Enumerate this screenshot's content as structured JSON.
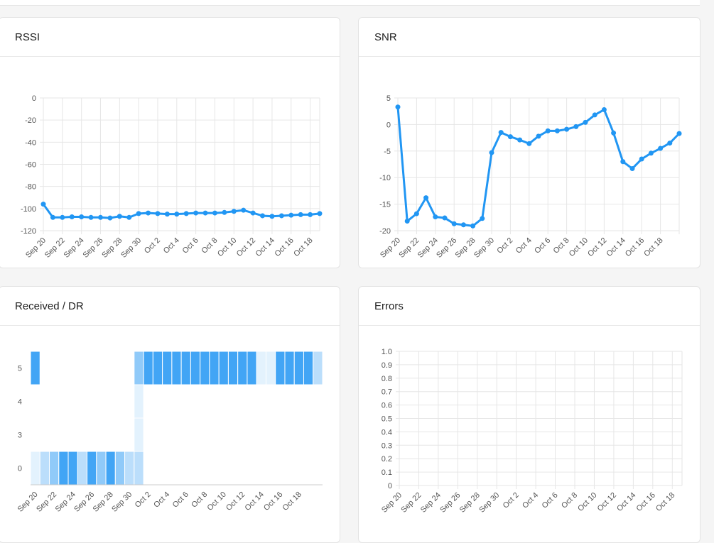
{
  "colors": {
    "line": "#2196f3",
    "grid": "#e6e6e6",
    "axis": "#cccccc"
  },
  "cards": {
    "rssi": {
      "title": "RSSI"
    },
    "snr": {
      "title": "SNR"
    },
    "received": {
      "title": "Received / DR"
    },
    "errors": {
      "title": "Errors"
    }
  },
  "chart_data": [
    {
      "id": "rssi",
      "type": "line",
      "title": "RSSI",
      "x": [
        "Sep 20",
        "Sep 21",
        "Sep 22",
        "Sep 23",
        "Sep 24",
        "Sep 25",
        "Sep 26",
        "Sep 27",
        "Sep 28",
        "Sep 29",
        "Sep 30",
        "Oct 1",
        "Oct 2",
        "Oct 3",
        "Oct 4",
        "Oct 5",
        "Oct 6",
        "Oct 7",
        "Oct 8",
        "Oct 9",
        "Oct 10",
        "Oct 11",
        "Oct 12",
        "Oct 13",
        "Oct 14",
        "Oct 15",
        "Oct 16",
        "Oct 17",
        "Oct 18",
        "Oct 19"
      ],
      "x_tick_labels": [
        "Sep 20",
        "Sep 22",
        "Sep 24",
        "Sep 26",
        "Sep 28",
        "Sep 30",
        "Oct 2",
        "Oct 4",
        "Oct 6",
        "Oct 8",
        "Oct 10",
        "Oct 12",
        "Oct 14",
        "Oct 16",
        "Oct 18"
      ],
      "values": [
        -96,
        -108,
        -108,
        -107.5,
        -107.5,
        -108,
        -108,
        -108.5,
        -107,
        -108,
        -104.5,
        -104,
        -104.5,
        -105,
        -105,
        -104.5,
        -104,
        -104,
        -104,
        -103.5,
        -102.5,
        -101.5,
        -104,
        -106.5,
        -107,
        -106.5,
        -106,
        -105.5,
        -105.5,
        -104.5
      ],
      "ylim": [
        -120,
        0
      ],
      "yticks": [
        0,
        -20,
        -40,
        -60,
        -80,
        -100,
        -120
      ]
    },
    {
      "id": "snr",
      "type": "line",
      "title": "SNR",
      "x": [
        "Sep 20",
        "Sep 21",
        "Sep 22",
        "Sep 23",
        "Sep 24",
        "Sep 25",
        "Sep 26",
        "Sep 27",
        "Sep 28",
        "Sep 29",
        "Sep 30",
        "Oct 1",
        "Oct 2",
        "Oct 3",
        "Oct 4",
        "Oct 5",
        "Oct 6",
        "Oct 7",
        "Oct 8",
        "Oct 9",
        "Oct 10",
        "Oct 11",
        "Oct 12",
        "Oct 13",
        "Oct 14",
        "Oct 15",
        "Oct 16",
        "Oct 17",
        "Oct 18",
        "Oct 19"
      ],
      "x_tick_labels": [
        "Sep 20",
        "Sep 22",
        "Sep 24",
        "Sep 26",
        "Sep 28",
        "Sep 30",
        "Oct 2",
        "Oct 4",
        "Oct 6",
        "Oct 8",
        "Oct 10",
        "Oct 12",
        "Oct 14",
        "Oct 16",
        "Oct 18"
      ],
      "values": [
        3.3,
        -18.2,
        -16.8,
        -13.8,
        -17.4,
        -17.6,
        -18.7,
        -18.9,
        -19.1,
        -17.7,
        -5.3,
        -1.5,
        -2.3,
        -2.9,
        -3.6,
        -2.2,
        -1.2,
        -1.2,
        -0.9,
        -0.4,
        0.4,
        1.8,
        2.8,
        -1.6,
        -7,
        -8.3,
        -6.5,
        -5.4,
        -4.5,
        -3.5
      ],
      "values_tail": [
        -1.7
      ],
      "ylim": [
        -20,
        5
      ],
      "yticks": [
        5,
        0,
        -5,
        -10,
        -15,
        -20
      ]
    },
    {
      "id": "received_dr",
      "type": "heatmap",
      "title": "Received / DR",
      "x_tick_labels": [
        "Sep 20",
        "Sep 22",
        "Sep 24",
        "Sep 26",
        "Sep 28",
        "Sep 30",
        "Oct 2",
        "Oct 4",
        "Oct 6",
        "Oct 8",
        "Oct 10",
        "Oct 12",
        "Oct 14",
        "Oct 16",
        "Oct 18"
      ],
      "y_categories": [
        "5",
        "4",
        "3",
        "0"
      ],
      "rows": {
        "5": [
          4,
          0,
          0,
          0,
          0,
          0,
          0,
          0,
          0,
          0,
          0,
          3,
          4,
          4,
          4,
          4,
          4,
          4,
          4,
          4,
          4,
          4,
          4,
          4,
          1,
          1,
          4,
          4,
          4,
          4,
          2
        ],
        "4": [
          0,
          0,
          0,
          0,
          0,
          0,
          0,
          0,
          0,
          0,
          0,
          1,
          0,
          0,
          0,
          0,
          0,
          0,
          0,
          0,
          0,
          0,
          0,
          0,
          0,
          0,
          0,
          0,
          0,
          0,
          0
        ],
        "3": [
          0,
          0,
          0,
          0,
          0,
          0,
          0,
          0,
          0,
          0,
          0,
          1,
          0,
          0,
          0,
          0,
          0,
          0,
          0,
          0,
          0,
          0,
          0,
          0,
          0,
          0,
          0,
          0,
          0,
          0,
          0
        ],
        "0": [
          1,
          2,
          3,
          4,
          4,
          2,
          4,
          3,
          4,
          3,
          2,
          2,
          0,
          0,
          0,
          0,
          0,
          0,
          0,
          0,
          0,
          0,
          0,
          0,
          0,
          0,
          0,
          0,
          0,
          0,
          0
        ]
      }
    },
    {
      "id": "errors",
      "type": "line",
      "title": "Errors",
      "x_tick_labels": [
        "Sep 20",
        "Sep 22",
        "Sep 24",
        "Sep 26",
        "Sep 28",
        "Sep 30",
        "Oct 2",
        "Oct 4",
        "Oct 6",
        "Oct 8",
        "Oct 10",
        "Oct 12",
        "Oct 14",
        "Oct 16",
        "Oct 18"
      ],
      "values": [],
      "ylim": [
        0,
        1
      ],
      "yticks": [
        "1.0",
        "0.9",
        "0.8",
        "0.7",
        "0.6",
        "0.5",
        "0.4",
        "0.3",
        "0.2",
        "0.1",
        "0"
      ]
    }
  ]
}
